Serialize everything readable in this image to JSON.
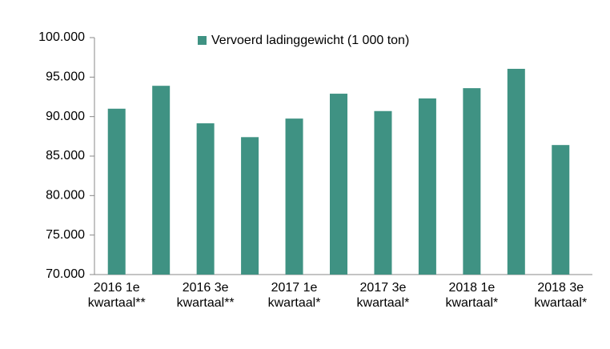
{
  "chart_data": {
    "type": "bar",
    "categories": [
      "2016 1e kwartaal**",
      null,
      "2016 3e kwartaal**",
      null,
      "2017 1e kwartaal*",
      null,
      "2017 3e kwartaal*",
      null,
      "2018 1e kwartaal*",
      null,
      "2018 3e kwartaal*"
    ],
    "series": [
      {
        "name": "Vervoerd ladinggewicht (1 000 ton)",
        "color": "#3f9283",
        "values": [
          91000,
          93900,
          89150,
          87400,
          89750,
          92900,
          90700,
          92300,
          93600,
          96050,
          86400
        ]
      }
    ],
    "ylim": [
      70000,
      100000
    ],
    "yticks": [
      {
        "value": 70000,
        "label": "70.000"
      },
      {
        "value": 75000,
        "label": "75.000"
      },
      {
        "value": 80000,
        "label": "80.000"
      },
      {
        "value": 85000,
        "label": "85.000"
      },
      {
        "value": 90000,
        "label": "90.000"
      },
      {
        "value": 95000,
        "label": "95.000"
      },
      {
        "value": 100000,
        "label": "100.000"
      }
    ],
    "grid": false,
    "legend": "top"
  }
}
